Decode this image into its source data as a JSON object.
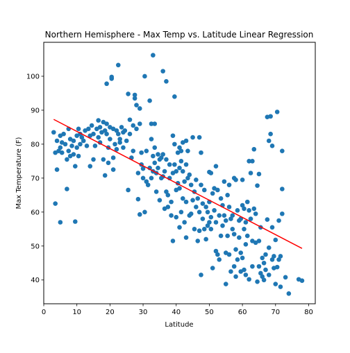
{
  "chart_data": {
    "type": "scatter",
    "title": "Northern Hemisphere - Max Temp vs. Latitude Linear Regression",
    "xlabel": "Latitude",
    "ylabel": "Max Temperature (F)",
    "xlim": [
      0,
      82
    ],
    "ylim": [
      33,
      110
    ],
    "xticks": [
      0,
      10,
      20,
      30,
      40,
      50,
      60,
      70,
      80
    ],
    "yticks": [
      40,
      50,
      60,
      70,
      80,
      90,
      100
    ],
    "grid": false,
    "legend": "none",
    "point_color": "#1f77b4",
    "line_color": "#ff0000",
    "regression_line": {
      "x": [
        3,
        78
      ],
      "y": [
        87.3,
        49.3
      ]
    },
    "points": [
      [
        3,
        83.5
      ],
      [
        3.5,
        77.5
      ],
      [
        3.5,
        62.5
      ],
      [
        4,
        72.5
      ],
      [
        4,
        81
      ],
      [
        4.5,
        78
      ],
      [
        5,
        82.5
      ],
      [
        5,
        79
      ],
      [
        5,
        57
      ],
      [
        5.5,
        80.5
      ],
      [
        5.5,
        77.5
      ],
      [
        6,
        83
      ],
      [
        6.5,
        80
      ],
      [
        7,
        75.5
      ],
      [
        7,
        66.8
      ],
      [
        7.5,
        78
      ],
      [
        7.5,
        84.5
      ],
      [
        8,
        81.5
      ],
      [
        8,
        76.5
      ],
      [
        8.5,
        79.5
      ],
      [
        9,
        77
      ],
      [
        9,
        81
      ],
      [
        9.5,
        57.2
      ],
      [
        9.5,
        73.5
      ],
      [
        10,
        79
      ],
      [
        10,
        82.5
      ],
      [
        10.5,
        84.5
      ],
      [
        10.5,
        76.5
      ],
      [
        11,
        83
      ],
      [
        11,
        80
      ],
      [
        11.5,
        82
      ],
      [
        12,
        81
      ],
      [
        12.5,
        84
      ],
      [
        13,
        79.5
      ],
      [
        13.5,
        84.5
      ],
      [
        14,
        73.5
      ],
      [
        14,
        82.5
      ],
      [
        14.5,
        85.5
      ],
      [
        15,
        75.5
      ],
      [
        15,
        83
      ],
      [
        15.5,
        79.5
      ],
      [
        16,
        84.5
      ],
      [
        16.5,
        87
      ],
      [
        16.5,
        82
      ],
      [
        17,
        80.5
      ],
      [
        17,
        85
      ],
      [
        17.5,
        83.5
      ],
      [
        18,
        86.5
      ],
      [
        18,
        75.5
      ],
      [
        18.5,
        84
      ],
      [
        18.5,
        70.8
      ],
      [
        19,
        86
      ],
      [
        19,
        83
      ],
      [
        19,
        97.8
      ],
      [
        19.5,
        79
      ],
      [
        19.5,
        74.5
      ],
      [
        20,
        85
      ],
      [
        20,
        81.5
      ],
      [
        20.5,
        99.3
      ],
      [
        20.5,
        99.8
      ],
      [
        21,
        84.5
      ],
      [
        21,
        76
      ],
      [
        21,
        72.5
      ],
      [
        21.5,
        80
      ],
      [
        22,
        84
      ],
      [
        22,
        78.5
      ],
      [
        22.5,
        83
      ],
      [
        22.5,
        103.3
      ],
      [
        23,
        80.5
      ],
      [
        23,
        81.5
      ],
      [
        23.5,
        85
      ],
      [
        24,
        79
      ],
      [
        24,
        83.5
      ],
      [
        24.5,
        84
      ],
      [
        25,
        81
      ],
      [
        25.5,
        94.8
      ],
      [
        25.5,
        66.5
      ],
      [
        26,
        87.2
      ],
      [
        26,
        83
      ],
      [
        26.5,
        76
      ],
      [
        27,
        85.5
      ],
      [
        27,
        78
      ],
      [
        27.5,
        94.5
      ],
      [
        27.5,
        93.5
      ],
      [
        28,
        91.5
      ],
      [
        28,
        84.5
      ],
      [
        28.5,
        71.5
      ],
      [
        28.5,
        63.8
      ],
      [
        29,
        86
      ],
      [
        29,
        90.5
      ],
      [
        29,
        59.3
      ],
      [
        29.5,
        77.5
      ],
      [
        29.5,
        74
      ],
      [
        30,
        72.8
      ],
      [
        30,
        70
      ],
      [
        30.5,
        100
      ],
      [
        30.5,
        60
      ],
      [
        31,
        78
      ],
      [
        31,
        69
      ],
      [
        31.5,
        68
      ],
      [
        32,
        92.8
      ],
      [
        32,
        73
      ],
      [
        32.5,
        86
      ],
      [
        32.5,
        81.5
      ],
      [
        32.5,
        70
      ],
      [
        33,
        106.2
      ],
      [
        33,
        76.5
      ],
      [
        33,
        72
      ],
      [
        33.5,
        86
      ],
      [
        33.5,
        79
      ],
      [
        33.5,
        74.5
      ],
      [
        34,
        71.5
      ],
      [
        34,
        66
      ],
      [
        34.5,
        77
      ],
      [
        34.5,
        73
      ],
      [
        35,
        75.5
      ],
      [
        35,
        63.5
      ],
      [
        35.5,
        76
      ],
      [
        35.5,
        70
      ],
      [
        36,
        101.5
      ],
      [
        36,
        77
      ],
      [
        36,
        70.5
      ],
      [
        36.5,
        72
      ],
      [
        36.5,
        61
      ],
      [
        37,
        98.5
      ],
      [
        37,
        75.5
      ],
      [
        37,
        66
      ],
      [
        37.5,
        65
      ],
      [
        37.5,
        61.5
      ],
      [
        38,
        74
      ],
      [
        38,
        70
      ],
      [
        38.5,
        63
      ],
      [
        38.5,
        59
      ],
      [
        39,
        82.5
      ],
      [
        39,
        71.5
      ],
      [
        39,
        51.5
      ],
      [
        39.5,
        94
      ],
      [
        39.5,
        80
      ],
      [
        39.5,
        74
      ],
      [
        40,
        72
      ],
      [
        40,
        66.5
      ],
      [
        40,
        58.5
      ],
      [
        40.5,
        77.5
      ],
      [
        40.5,
        68.5
      ],
      [
        41,
        79
      ],
      [
        41,
        73
      ],
      [
        41,
        67
      ],
      [
        41,
        55.5
      ],
      [
        41.5,
        78
      ],
      [
        41.5,
        75
      ],
      [
        41.5,
        60
      ],
      [
        42,
        80.5
      ],
      [
        42,
        72
      ],
      [
        42,
        64
      ],
      [
        42.5,
        69
      ],
      [
        42.5,
        57
      ],
      [
        43,
        81
      ],
      [
        43,
        74
      ],
      [
        43,
        63
      ],
      [
        43,
        52.5
      ],
      [
        43.5,
        78
      ],
      [
        43.5,
        70
      ],
      [
        44,
        71
      ],
      [
        44,
        59
      ],
      [
        44.5,
        68
      ],
      [
        44.5,
        59.5
      ],
      [
        45,
        82
      ],
      [
        45,
        63.5
      ],
      [
        45.5,
        66
      ],
      [
        45.5,
        55
      ],
      [
        46,
        69.5
      ],
      [
        46,
        61.5
      ],
      [
        46.5,
        64
      ],
      [
        46.5,
        51.5
      ],
      [
        47,
        82
      ],
      [
        47,
        60
      ],
      [
        47,
        54.5
      ],
      [
        47.5,
        77.5
      ],
      [
        47.5,
        68
      ],
      [
        47.5,
        41.5
      ],
      [
        48,
        62.5
      ],
      [
        48,
        58
      ],
      [
        48.5,
        66.5
      ],
      [
        48.5,
        55
      ],
      [
        49,
        61.5
      ],
      [
        49,
        52
      ],
      [
        49.5,
        60
      ],
      [
        49.5,
        56
      ],
      [
        50,
        71.8
      ],
      [
        50,
        63
      ],
      [
        50,
        57
      ],
      [
        50.5,
        71.5
      ],
      [
        50.5,
        58.5
      ],
      [
        50.5,
        55
      ],
      [
        51,
        65.5
      ],
      [
        51,
        43.5
      ],
      [
        51.5,
        67
      ],
      [
        51.5,
        60.5
      ],
      [
        52,
        73.5
      ],
      [
        52,
        57
      ],
      [
        52,
        48.5
      ],
      [
        52.5,
        66.5
      ],
      [
        52.5,
        47.5
      ],
      [
        53,
        59
      ],
      [
        53,
        46
      ],
      [
        53.5,
        64
      ],
      [
        53.5,
        53
      ],
      [
        54,
        62
      ],
      [
        54,
        56
      ],
      [
        54.5,
        69
      ],
      [
        54.5,
        59
      ],
      [
        55,
        57.5
      ],
      [
        55,
        48
      ],
      [
        55,
        38.8
      ],
      [
        55.5,
        65
      ],
      [
        55.5,
        53
      ],
      [
        56,
        68
      ],
      [
        56,
        61.5
      ],
      [
        56,
        47.5
      ],
      [
        56.5,
        58
      ],
      [
        56.5,
        42.5
      ],
      [
        57,
        59
      ],
      [
        57,
        55
      ],
      [
        57.5,
        70
      ],
      [
        57.5,
        53.5
      ],
      [
        57.5,
        44
      ],
      [
        58,
        69.5
      ],
      [
        58,
        49
      ],
      [
        58,
        41
      ],
      [
        58.5,
        60.5
      ],
      [
        58.5,
        46
      ],
      [
        59,
        57.5
      ],
      [
        59,
        52.5
      ],
      [
        59.5,
        58
      ],
      [
        59.5,
        48
      ],
      [
        59.5,
        42.5
      ],
      [
        60,
        69.5
      ],
      [
        60,
        62
      ],
      [
        60,
        46.5
      ],
      [
        60.5,
        61
      ],
      [
        60.5,
        55
      ],
      [
        60.5,
        43
      ],
      [
        61,
        57
      ],
      [
        61,
        50.5
      ],
      [
        61,
        41.5
      ],
      [
        61.5,
        63
      ],
      [
        61.5,
        53
      ],
      [
        62,
        75
      ],
      [
        62,
        60.5
      ],
      [
        62,
        40.2
      ],
      [
        62.5,
        71.5
      ],
      [
        62.5,
        58
      ],
      [
        63,
        75
      ],
      [
        63,
        51.5
      ],
      [
        63,
        44
      ],
      [
        63.5,
        78.5
      ],
      [
        63.5,
        61
      ],
      [
        64,
        59.5
      ],
      [
        64,
        51
      ],
      [
        64.5,
        67.8
      ],
      [
        64.5,
        39.5
      ],
      [
        65,
        71.2
      ],
      [
        65,
        51.5
      ],
      [
        65,
        44
      ],
      [
        65.5,
        55.5
      ],
      [
        65.5,
        42
      ],
      [
        66,
        46.5
      ],
      [
        66,
        41
      ],
      [
        66.5,
        45
      ],
      [
        66.5,
        40
      ],
      [
        67,
        47.5
      ],
      [
        67,
        43
      ],
      [
        67.5,
        88
      ],
      [
        67.5,
        57.8
      ],
      [
        68,
        81
      ],
      [
        68,
        49.5
      ],
      [
        68,
        41.5
      ],
      [
        68.5,
        88.2
      ],
      [
        68.5,
        83
      ],
      [
        69,
        79.5
      ],
      [
        69,
        55.5
      ],
      [
        69,
        46
      ],
      [
        69.5,
        47
      ],
      [
        69.5,
        43.5
      ],
      [
        70,
        51.8
      ],
      [
        70,
        38.8
      ],
      [
        70.5,
        89.5
      ],
      [
        70.5,
        43.8
      ],
      [
        71,
        57.5
      ],
      [
        71,
        46
      ],
      [
        71.5,
        47
      ],
      [
        71.5,
        38
      ],
      [
        72,
        78
      ],
      [
        72,
        66.8
      ],
      [
        72,
        59.5
      ],
      [
        73,
        40.8
      ],
      [
        74,
        36
      ],
      [
        77,
        40.2
      ],
      [
        78,
        39.8
      ]
    ]
  }
}
